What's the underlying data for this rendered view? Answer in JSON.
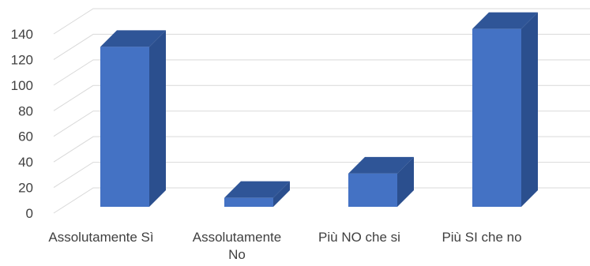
{
  "chart_data": {
    "type": "bar",
    "style": "3d-column",
    "categories": [
      [
        "Assolutamente Sì"
      ],
      [
        "Assolutamente",
        "No"
      ],
      [
        "Più NO che si"
      ],
      [
        "Più SI che no"
      ]
    ],
    "series": [
      {
        "values": [
          125,
          7,
          26,
          139
        ]
      }
    ],
    "ylim": [
      0,
      140
    ],
    "yticks": [
      0,
      20,
      40,
      60,
      80,
      100,
      120,
      140
    ],
    "grid": true,
    "legend": "none",
    "title": "",
    "xlabel": "",
    "ylabel": ""
  },
  "colors": {
    "bar_front": "#4472c4",
    "bar_top": "#2f5597",
    "bar_side": "#2b4f8e",
    "grid": "#d9d9d9",
    "text": "#404040"
  }
}
